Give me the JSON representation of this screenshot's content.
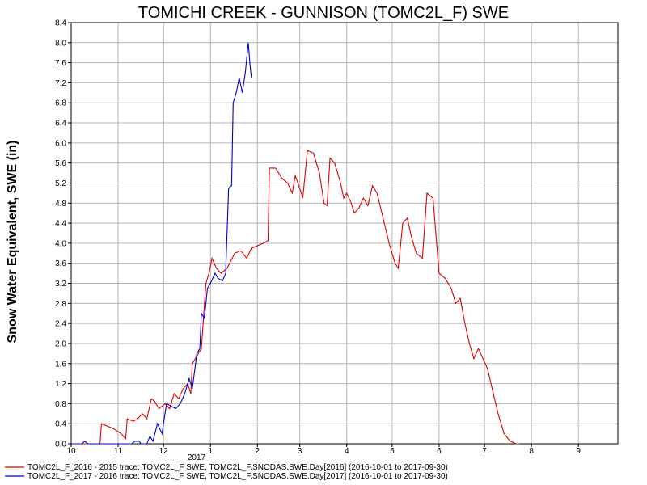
{
  "chart_data": {
    "type": "line",
    "title": "TOMICHI CREEK - GUNNISON (TOMC2L_F) SWE",
    "xlabel": "",
    "ylabel": "Snow Water Equivalent, SWE (in)",
    "x_ticks": [
      "10",
      "11",
      "12",
      "1",
      "2",
      "3",
      "4",
      "5",
      "6",
      "7",
      "8",
      "9"
    ],
    "x_year_label": "2017",
    "ylim": [
      0,
      8.4
    ],
    "y_ticks": [
      "0.0",
      "0.4",
      "0.8",
      "1.2",
      "1.6",
      "2.0",
      "2.4",
      "2.8",
      "3.2",
      "3.6",
      "4.0",
      "4.4",
      "4.8",
      "5.2",
      "5.6",
      "6.0",
      "6.4",
      "6.8",
      "7.2",
      "7.6",
      "8.0",
      "8.4"
    ],
    "grid": true,
    "legend_position": "bottom",
    "series": [
      {
        "name": "TOMC2L_F_2016 - 2015 trace: TOMC2L_F SWE, TOMC2L_F.SNODAS.SWE.Day[2016] (2016-10-01 to 2017-09-30)",
        "color": "#dd0000",
        "points": [
          [
            "2016-10-01",
            0
          ],
          [
            "2016-10-20",
            0
          ],
          [
            "2016-10-21",
            0.4
          ],
          [
            "2016-10-25",
            0.35
          ],
          [
            "2016-10-29",
            0.3
          ],
          [
            "2016-11-03",
            0.2
          ],
          [
            "2016-11-06",
            0.1
          ],
          [
            "2016-11-07",
            0.5
          ],
          [
            "2016-11-11",
            0.45
          ],
          [
            "2016-11-14",
            0.5
          ],
          [
            "2016-11-17",
            0.6
          ],
          [
            "2016-11-20",
            0.5
          ],
          [
            "2016-11-23",
            0.9
          ],
          [
            "2016-11-25",
            0.85
          ],
          [
            "2016-11-28",
            0.7
          ],
          [
            "2016-12-02",
            0.8
          ],
          [
            "2016-12-05",
            0.7
          ],
          [
            "2016-12-08",
            1.0
          ],
          [
            "2016-12-11",
            0.9
          ],
          [
            "2016-12-14",
            1.1
          ],
          [
            "2016-12-17",
            1.2
          ],
          [
            "2016-12-19",
            1.0
          ],
          [
            "2016-12-20",
            1.6
          ],
          [
            "2016-12-24",
            1.8
          ],
          [
            "2016-12-26",
            1.9
          ],
          [
            "2016-12-29",
            3.2
          ],
          [
            "2016-12-31",
            3.4
          ],
          [
            "2017-01-02",
            3.7
          ],
          [
            "2017-01-05",
            3.5
          ],
          [
            "2017-01-08",
            3.4
          ],
          [
            "2017-01-12",
            3.5
          ],
          [
            "2017-01-17",
            3.8
          ],
          [
            "2017-01-21",
            3.85
          ],
          [
            "2017-01-25",
            3.7
          ],
          [
            "2017-01-28",
            3.9
          ],
          [
            "2017-02-01",
            3.95
          ],
          [
            "2017-02-05",
            4.0
          ],
          [
            "2017-02-08",
            4.05
          ],
          [
            "2017-02-09",
            5.5
          ],
          [
            "2017-02-13",
            5.5
          ],
          [
            "2017-02-17",
            5.3
          ],
          [
            "2017-02-21",
            5.2
          ],
          [
            "2017-02-24",
            5.0
          ],
          [
            "2017-02-26",
            5.35
          ],
          [
            "2017-03-02",
            5.0
          ],
          [
            "2017-03-03",
            4.9
          ],
          [
            "2017-03-06",
            5.85
          ],
          [
            "2017-03-10",
            5.8
          ],
          [
            "2017-03-14",
            5.4
          ],
          [
            "2017-03-17",
            4.8
          ],
          [
            "2017-03-19",
            4.75
          ],
          [
            "2017-03-21",
            5.7
          ],
          [
            "2017-03-24",
            5.6
          ],
          [
            "2017-03-28",
            5.2
          ],
          [
            "2017-03-30",
            4.9
          ],
          [
            "2017-04-01",
            5.0
          ],
          [
            "2017-04-04",
            4.8
          ],
          [
            "2017-04-06",
            4.6
          ],
          [
            "2017-04-09",
            4.7
          ],
          [
            "2017-04-12",
            4.9
          ],
          [
            "2017-04-15",
            4.75
          ],
          [
            "2017-04-18",
            5.15
          ],
          [
            "2017-04-21",
            5.0
          ],
          [
            "2017-04-25",
            4.5
          ],
          [
            "2017-04-29",
            4.0
          ],
          [
            "2017-05-03",
            3.6
          ],
          [
            "2017-05-05",
            3.5
          ],
          [
            "2017-05-08",
            4.4
          ],
          [
            "2017-05-11",
            4.5
          ],
          [
            "2017-05-14",
            4.1
          ],
          [
            "2017-05-17",
            3.8
          ],
          [
            "2017-05-21",
            3.7
          ],
          [
            "2017-05-24",
            5.0
          ],
          [
            "2017-05-28",
            4.9
          ],
          [
            "2017-06-01",
            3.4
          ],
          [
            "2017-06-05",
            3.3
          ],
          [
            "2017-06-09",
            3.1
          ],
          [
            "2017-06-12",
            2.8
          ],
          [
            "2017-06-15",
            2.9
          ],
          [
            "2017-06-18",
            2.4
          ],
          [
            "2017-06-21",
            2.0
          ],
          [
            "2017-06-24",
            1.7
          ],
          [
            "2017-06-27",
            1.9
          ],
          [
            "2017-06-30",
            1.7
          ],
          [
            "2017-07-03",
            1.5
          ],
          [
            "2017-07-06",
            1.1
          ],
          [
            "2017-07-10",
            0.6
          ],
          [
            "2017-07-14",
            0.2
          ],
          [
            "2017-07-18",
            0.05
          ],
          [
            "2017-07-22",
            0
          ],
          [
            "2017-07-24",
            0
          ]
        ]
      },
      {
        "name": "TOMC2L_F_2017 - 2016 trace: TOMC2L_F SWE, TOMC2L_F.SNODAS.SWE.Day[2017] (2016-10-01 to 2017-09-30)",
        "color": "#0000cc",
        "points": [
          [
            "2016-10-01",
            0
          ],
          [
            "2016-10-08",
            0
          ],
          [
            "2016-10-10",
            0.05
          ],
          [
            "2016-10-12",
            0
          ],
          [
            "2016-11-10",
            0
          ],
          [
            "2016-11-12",
            0.05
          ],
          [
            "2016-11-15",
            0.05
          ],
          [
            "2016-11-16",
            0
          ],
          [
            "2016-11-20",
            0
          ],
          [
            "2016-11-22",
            0.15
          ],
          [
            "2016-11-24",
            0.05
          ],
          [
            "2016-11-27",
            0.4
          ],
          [
            "2016-11-30",
            0.2
          ],
          [
            "2016-12-03",
            0.8
          ],
          [
            "2016-12-06",
            0.75
          ],
          [
            "2016-12-09",
            0.7
          ],
          [
            "2016-12-12",
            0.8
          ],
          [
            "2016-12-15",
            1.0
          ],
          [
            "2016-12-18",
            1.3
          ],
          [
            "2016-12-20",
            1.1
          ],
          [
            "2016-12-23",
            1.8
          ],
          [
            "2016-12-25",
            1.9
          ],
          [
            "2016-12-26",
            2.6
          ],
          [
            "2016-12-28",
            2.5
          ],
          [
            "2016-12-30",
            3.1
          ],
          [
            "2017-01-01",
            3.2
          ],
          [
            "2017-01-04",
            3.4
          ],
          [
            "2017-01-06",
            3.3
          ],
          [
            "2017-01-09",
            3.25
          ],
          [
            "2017-01-11",
            3.4
          ],
          [
            "2017-01-13",
            5.1
          ],
          [
            "2017-01-15",
            5.15
          ],
          [
            "2017-01-16",
            6.8
          ],
          [
            "2017-01-18",
            7.0
          ],
          [
            "2017-01-20",
            7.3
          ],
          [
            "2017-01-22",
            7.0
          ],
          [
            "2017-01-24",
            7.4
          ],
          [
            "2017-01-26",
            8.0
          ],
          [
            "2017-01-27",
            7.6
          ],
          [
            "2017-01-28",
            7.3
          ]
        ]
      }
    ]
  }
}
